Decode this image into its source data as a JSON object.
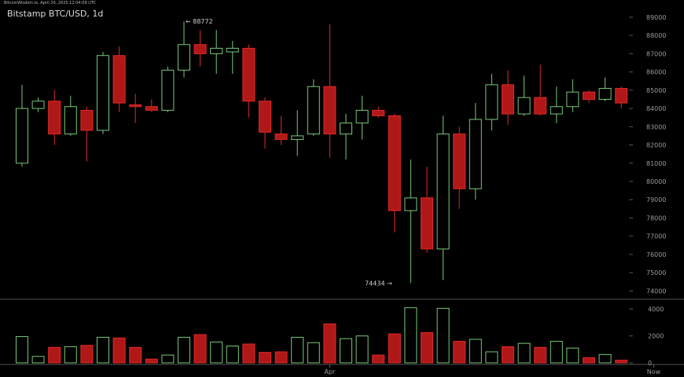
{
  "header": {
    "top_line": "BitcoinWisdom.io, April 20, 2025 12:04:09 UTC",
    "title": "Bitstamp BTC/USD, 1d"
  },
  "colors": {
    "up": "#79c879",
    "down": "#e02828",
    "down_fill": "#b01818",
    "text": "#cfcfcf",
    "axis_text": "#9a9a9a",
    "divider": "#555555"
  },
  "chart_data": {
    "type": "candlestick",
    "title": "Bitstamp BTC/USD, 1d",
    "ylim": [
      73500,
      89600
    ],
    "yticks": [
      74000,
      75000,
      76000,
      77000,
      78000,
      79000,
      80000,
      81000,
      82000,
      83000,
      84000,
      85000,
      86000,
      87000,
      88000,
      89000
    ],
    "volume_ylim": [
      0,
      4200
    ],
    "volume_ticks": [
      0,
      2000,
      4000
    ],
    "x_labels": [
      {
        "index": 19,
        "label": "Apr"
      },
      {
        "index": 39,
        "label": "Now"
      }
    ],
    "annotations": [
      {
        "index": 10,
        "value": 88772,
        "text": "← 88772"
      },
      {
        "index": 23,
        "value": 74434,
        "text": "74434 →"
      }
    ],
    "candles": [
      {
        "o": 81000,
        "h": 85300,
        "l": 80800,
        "c": 84000,
        "v": 1950
      },
      {
        "o": 84000,
        "h": 84600,
        "l": 83800,
        "c": 84400,
        "v": 480
      },
      {
        "o": 84400,
        "h": 85000,
        "l": 82000,
        "c": 82600,
        "v": 1150
      },
      {
        "o": 82600,
        "h": 84700,
        "l": 82500,
        "c": 84100,
        "v": 1200
      },
      {
        "o": 83900,
        "h": 84100,
        "l": 81100,
        "c": 82800,
        "v": 1300
      },
      {
        "o": 82800,
        "h": 87100,
        "l": 82600,
        "c": 86900,
        "v": 1900
      },
      {
        "o": 86900,
        "h": 87400,
        "l": 83800,
        "c": 84300,
        "v": 1850
      },
      {
        "o": 84200,
        "h": 84800,
        "l": 83200,
        "c": 84100,
        "v": 1150
      },
      {
        "o": 84100,
        "h": 84500,
        "l": 83800,
        "c": 83900,
        "v": 280
      },
      {
        "o": 83900,
        "h": 86300,
        "l": 83800,
        "c": 86100,
        "v": 580
      },
      {
        "o": 86100,
        "h": 88772,
        "l": 85700,
        "c": 87500,
        "v": 1900
      },
      {
        "o": 87500,
        "h": 88300,
        "l": 86300,
        "c": 87000,
        "v": 2100
      },
      {
        "o": 87000,
        "h": 88300,
        "l": 85900,
        "c": 87300,
        "v": 1550
      },
      {
        "o": 87100,
        "h": 87700,
        "l": 85900,
        "c": 87300,
        "v": 1250
      },
      {
        "o": 87300,
        "h": 87500,
        "l": 83500,
        "c": 84400,
        "v": 1400
      },
      {
        "o": 84400,
        "h": 84600,
        "l": 81800,
        "c": 82700,
        "v": 780
      },
      {
        "o": 82600,
        "h": 83600,
        "l": 82000,
        "c": 82300,
        "v": 820
      },
      {
        "o": 82300,
        "h": 83900,
        "l": 81400,
        "c": 82500,
        "v": 1900
      },
      {
        "o": 82600,
        "h": 85600,
        "l": 82500,
        "c": 85200,
        "v": 1500
      },
      {
        "o": 85200,
        "h": 88600,
        "l": 81300,
        "c": 82600,
        "v": 2900
      },
      {
        "o": 82600,
        "h": 83700,
        "l": 81200,
        "c": 83200,
        "v": 1800
      },
      {
        "o": 83200,
        "h": 84700,
        "l": 82300,
        "c": 83900,
        "v": 2000
      },
      {
        "o": 83900,
        "h": 84100,
        "l": 83500,
        "c": 83600,
        "v": 580
      },
      {
        "o": 83600,
        "h": 83700,
        "l": 77200,
        "c": 78400,
        "v": 2150
      },
      {
        "o": 78400,
        "h": 81200,
        "l": 74434,
        "c": 79100,
        "v": 4100
      },
      {
        "o": 79100,
        "h": 80800,
        "l": 76100,
        "c": 76300,
        "v": 2250
      },
      {
        "o": 76300,
        "h": 83600,
        "l": 74600,
        "c": 82600,
        "v": 4050
      },
      {
        "o": 82600,
        "h": 83000,
        "l": 78500,
        "c": 79600,
        "v": 1600
      },
      {
        "o": 79600,
        "h": 84300,
        "l": 79000,
        "c": 83400,
        "v": 1750
      },
      {
        "o": 83400,
        "h": 85900,
        "l": 82800,
        "c": 85300,
        "v": 820
      },
      {
        "o": 85300,
        "h": 86100,
        "l": 83100,
        "c": 83700,
        "v": 1200
      },
      {
        "o": 83700,
        "h": 85800,
        "l": 83600,
        "c": 84600,
        "v": 1450
      },
      {
        "o": 84600,
        "h": 86400,
        "l": 83600,
        "c": 83700,
        "v": 1150
      },
      {
        "o": 83700,
        "h": 85200,
        "l": 83200,
        "c": 84100,
        "v": 1600
      },
      {
        "o": 84100,
        "h": 85600,
        "l": 83800,
        "c": 84900,
        "v": 1100
      },
      {
        "o": 84900,
        "h": 85000,
        "l": 84300,
        "c": 84500,
        "v": 380
      },
      {
        "o": 84500,
        "h": 85700,
        "l": 84400,
        "c": 85100,
        "v": 620
      },
      {
        "o": 85100,
        "h": 85200,
        "l": 84000,
        "c": 84300,
        "v": 200
      }
    ]
  }
}
